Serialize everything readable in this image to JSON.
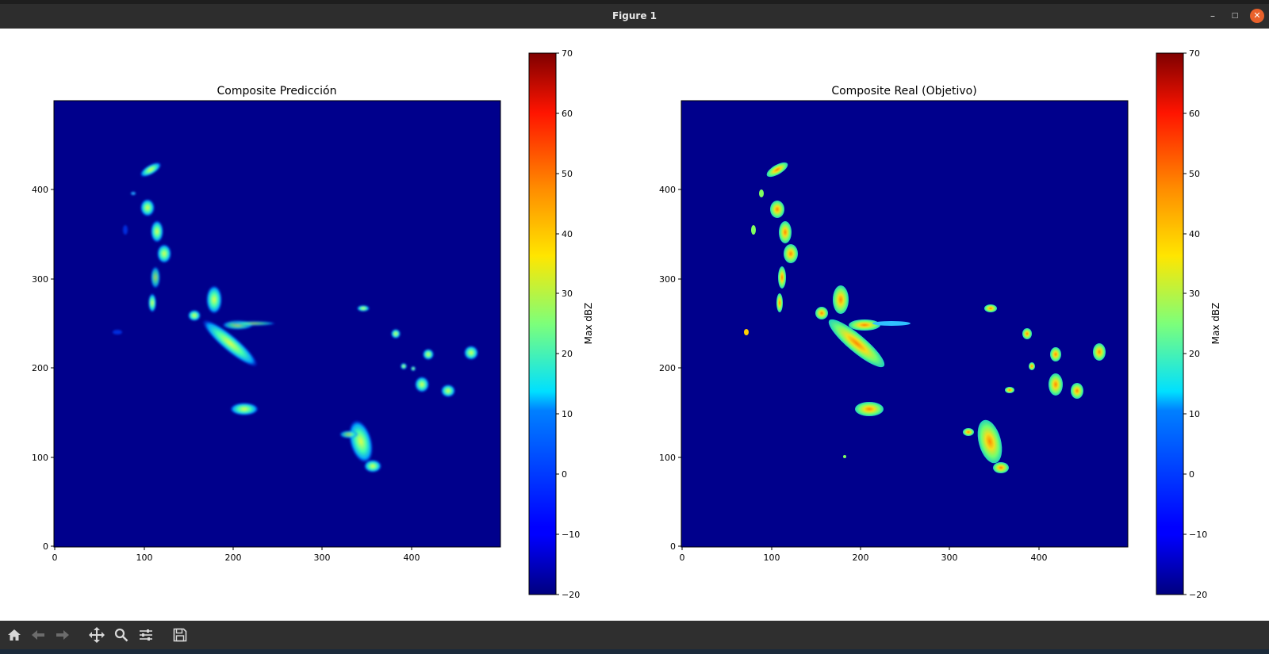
{
  "window": {
    "title": "Figure 1",
    "controls": [
      "minimize-icon",
      "maximize-icon",
      "close-icon"
    ]
  },
  "colors": {
    "background_field": "#00008c",
    "figure_bg": "#ffffff",
    "titlebar_bg": "#2d2d2d",
    "toolbar_bg": "#2f2f2f",
    "close_button": "#e9612b"
  },
  "plots": [
    {
      "title": "Composite Predicción",
      "x_ticks": [
        "0",
        "100",
        "200",
        "300",
        "400"
      ],
      "y_ticks": [
        "0",
        "100",
        "200",
        "300",
        "400"
      ],
      "colorbar": {
        "label": "Max dBZ",
        "ticks": [
          "70",
          "60",
          "50",
          "40",
          "30",
          "20",
          "10",
          "0",
          "−10",
          "−20"
        ],
        "colormap": "jet"
      }
    },
    {
      "title": "Composite Real (Objetivo)",
      "x_ticks": [
        "0",
        "100",
        "200",
        "300",
        "400"
      ],
      "y_ticks": [
        "0",
        "100",
        "200",
        "300",
        "400"
      ],
      "colorbar": {
        "label": "Max dBZ",
        "ticks": [
          "70",
          "60",
          "50",
          "40",
          "30",
          "20",
          "10",
          "0",
          "−10",
          "−20"
        ],
        "colormap": "jet"
      }
    }
  ],
  "toolbar": {
    "buttons": [
      "home-icon",
      "back-icon",
      "forward-icon",
      "pan-icon",
      "zoom-icon",
      "configure-subplots-icon",
      "save-icon"
    ]
  }
}
